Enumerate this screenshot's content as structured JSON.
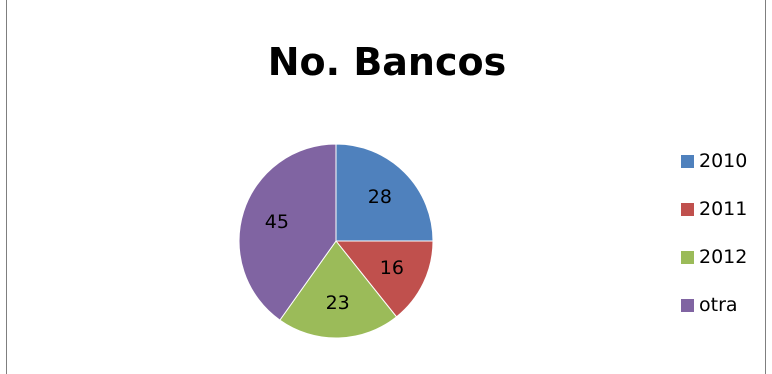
{
  "chart_data": {
    "type": "pie",
    "title": "No. Bancos",
    "legend_position": "right",
    "slices": [
      {
        "label": "2010",
        "value": 28,
        "color": "#4F81BD"
      },
      {
        "label": "2011",
        "value": 16,
        "color": "#C0504D"
      },
      {
        "label": "2012",
        "value": 23,
        "color": "#9BBB59"
      },
      {
        "label": "otra",
        "value": 45,
        "color": "#8064A2"
      }
    ]
  }
}
